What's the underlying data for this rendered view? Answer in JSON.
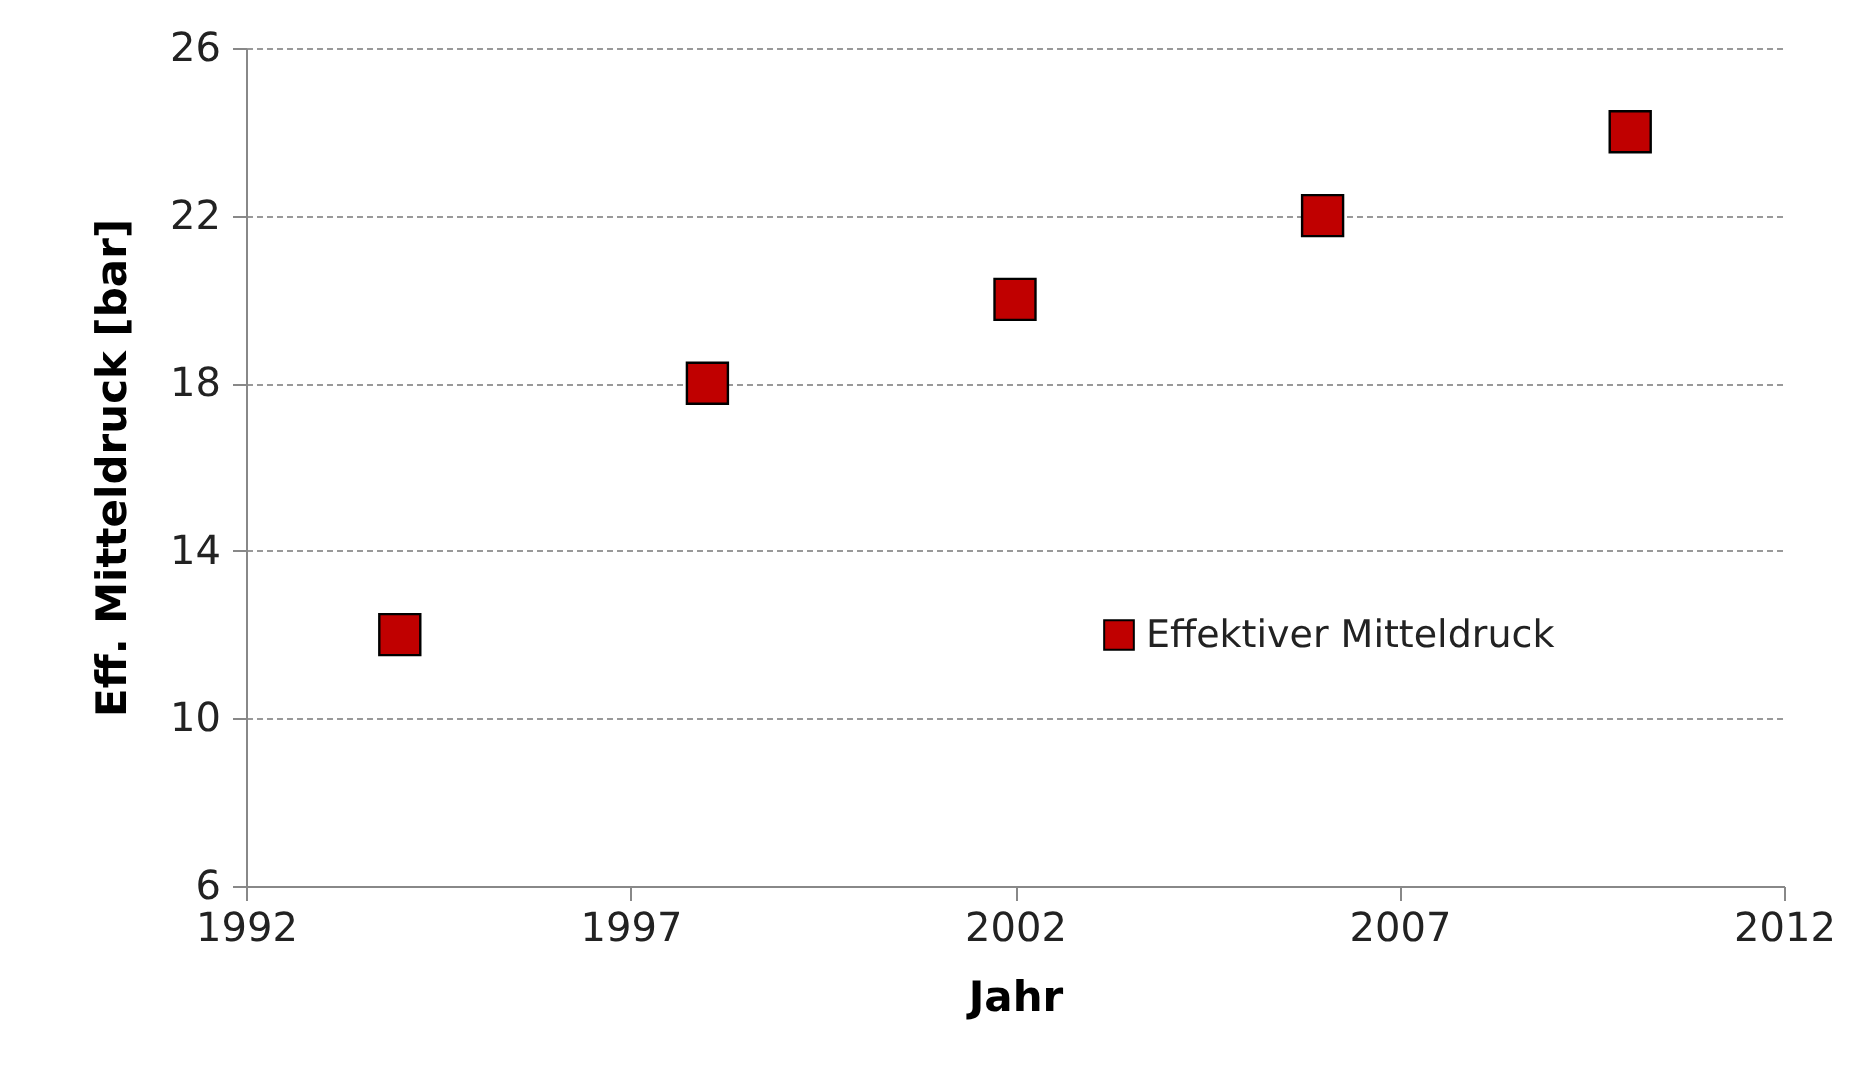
{
  "chart_data": {
    "type": "scatter",
    "xlabel": "Jahr",
    "ylabel": "Eff. Mitteldruck [bar]",
    "x": [
      1994,
      1998,
      2002,
      2006,
      2010
    ],
    "series": [
      {
        "name": "Effektiver Mitteldruck",
        "color": "#c00000",
        "values": [
          12,
          18,
          20,
          22,
          24
        ]
      }
    ],
    "xlim": [
      1992,
      2012
    ],
    "xticks": [
      1992,
      1997,
      2002,
      2007,
      2012
    ],
    "ylim": [
      6,
      26
    ],
    "yticks": [
      6,
      10,
      14,
      18,
      22,
      26
    ],
    "grid": "y",
    "legend": "right",
    "marker": "square"
  }
}
